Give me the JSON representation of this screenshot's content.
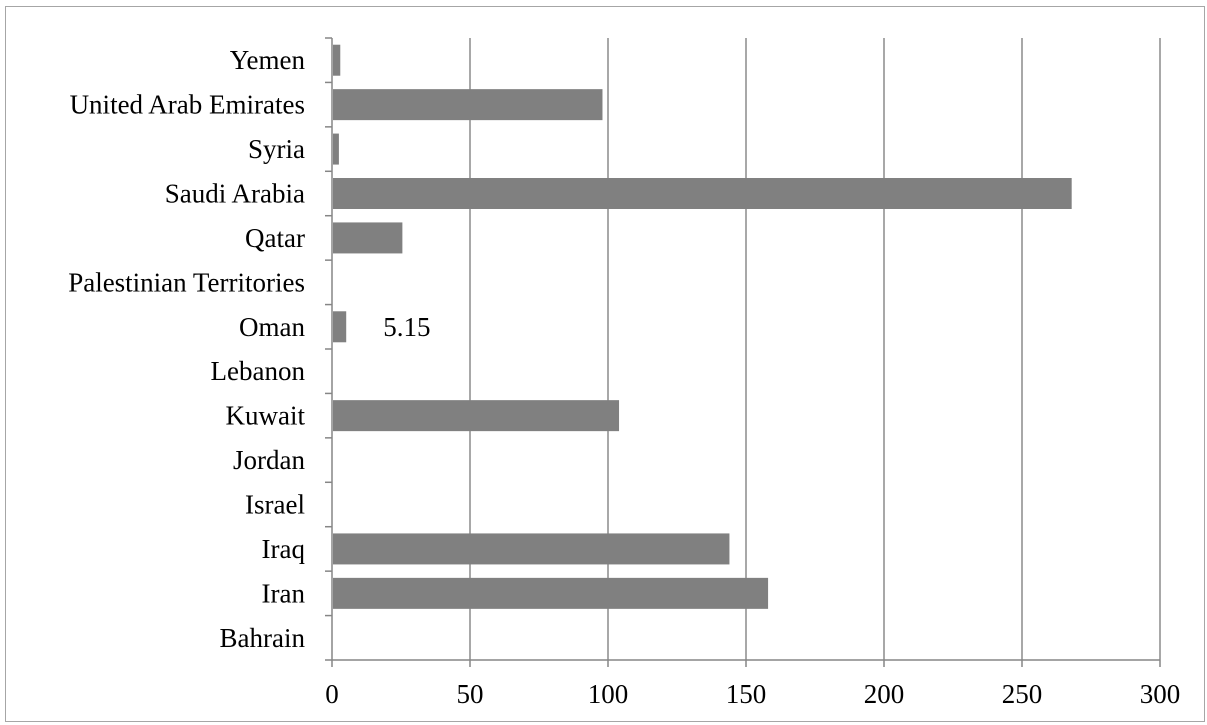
{
  "chart_data": {
    "type": "bar",
    "orientation": "horizontal",
    "categories": [
      "Bahrain",
      "Iran",
      "Iraq",
      "Israel",
      "Jordan",
      "Kuwait",
      "Lebanon",
      "Oman",
      "Palestinian Territories",
      "Qatar",
      "Saudi Arabia",
      "Syria",
      "United Arab Emirates",
      "Yemen"
    ],
    "values": [
      0,
      158,
      144,
      0,
      0,
      104,
      0,
      5.15,
      0,
      25.5,
      268,
      2.5,
      98,
      3
    ],
    "data_labels": [
      {
        "category": "Oman",
        "text": "5.15"
      }
    ],
    "x_ticks": [
      "0",
      "50",
      "100",
      "150",
      "200",
      "250",
      "300"
    ],
    "xlim": [
      0,
      300
    ],
    "title": "",
    "xlabel": "",
    "ylabel": "",
    "grid": "vertical",
    "legend": "none",
    "bar_color": "#808080",
    "gridline_color": "#8c8c8c",
    "axis_color": "#868686"
  }
}
